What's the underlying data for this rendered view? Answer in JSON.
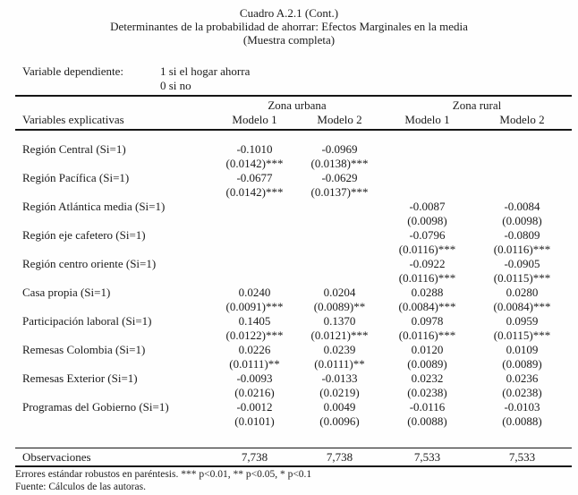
{
  "header": {
    "title1": "Cuadro A.2.1 (Cont.)",
    "title2": "Determinantes de la probabilidad de ahorrar: Efectos Marginales en la media",
    "title3": "(Muestra completa)",
    "dep_var_label": "Variable dependiente:",
    "dep_var_value1": "1 si el hogar ahorra",
    "dep_var_value2": "0 si no"
  },
  "table": {
    "group_headers": [
      "Zona urbana",
      "Zona rural"
    ],
    "col_header_left": "Variables explicativas",
    "col_headers": [
      "Modelo 1",
      "Modelo 2",
      "Modelo 1",
      "Modelo 2"
    ],
    "rows": [
      {
        "label": "Región Central (Si=1)",
        "coefs": [
          "-0.1010",
          "-0.0969",
          "",
          ""
        ],
        "ses": [
          "(0.0142)***",
          "(0.0138)***",
          "",
          ""
        ]
      },
      {
        "label": "Región Pacífica (Si=1)",
        "coefs": [
          "-0.0677",
          "-0.0629",
          "",
          ""
        ],
        "ses": [
          "(0.0142)***",
          "(0.0137)***",
          "",
          ""
        ]
      },
      {
        "label": "Región Atlántica media (Si=1)",
        "coefs": [
          "",
          "",
          "-0.0087",
          "-0.0084"
        ],
        "ses": [
          "",
          "",
          "(0.0098)",
          "(0.0098)"
        ]
      },
      {
        "label": "Región eje cafetero (Si=1)",
        "coefs": [
          "",
          "",
          "-0.0796",
          "-0.0809"
        ],
        "ses": [
          "",
          "",
          "(0.0116)***",
          "(0.0116)***"
        ]
      },
      {
        "label": "Región centro oriente (Si=1)",
        "coefs": [
          "",
          "",
          "-0.0922",
          "-0.0905"
        ],
        "ses": [
          "",
          "",
          "(0.0116)***",
          "(0.0115)***"
        ]
      },
      {
        "label": "Casa propia (Si=1)",
        "coefs": [
          "0.0240",
          "0.0204",
          "0.0288",
          "0.0280"
        ],
        "ses": [
          "(0.0091)***",
          "(0.0089)**",
          "(0.0084)***",
          "(0.0084)***"
        ]
      },
      {
        "label": "Participación laboral (Si=1)",
        "coefs": [
          "0.1405",
          "0.1370",
          "0.0978",
          "0.0959"
        ],
        "ses": [
          "(0.0122)***",
          "(0.0121)***",
          "(0.0116)***",
          "(0.0115)***"
        ]
      },
      {
        "label": "Remesas Colombia (Si=1)",
        "coefs": [
          "0.0226",
          "0.0239",
          "0.0120",
          "0.0109"
        ],
        "ses": [
          "(0.0111)**",
          "(0.0111)**",
          "(0.0089)",
          "(0.0089)"
        ]
      },
      {
        "label": "Remesas Exterior (Si=1)",
        "coefs": [
          "-0.0093",
          "-0.0133",
          "0.0232",
          "0.0236"
        ],
        "ses": [
          "(0.0216)",
          "(0.0219)",
          "(0.0238)",
          "(0.0238)"
        ]
      },
      {
        "label": "Programas del Gobierno (Si=1)",
        "coefs": [
          "-0.0012",
          "0.0049",
          "-0.0116",
          "-0.0103"
        ],
        "ses": [
          "(0.0101)",
          "(0.0096)",
          "(0.0088)",
          "(0.0088)"
        ]
      }
    ],
    "obs_label": "Observaciones",
    "obs_values": [
      "7,738",
      "7,738",
      "7,533",
      "7,533"
    ]
  },
  "footer": {
    "note1": "Errores estándar robustos en paréntesis. *** p<0.01, ** p<0.05, * p<0.1",
    "note2": "Fuente: Cálculos de las autoras."
  }
}
